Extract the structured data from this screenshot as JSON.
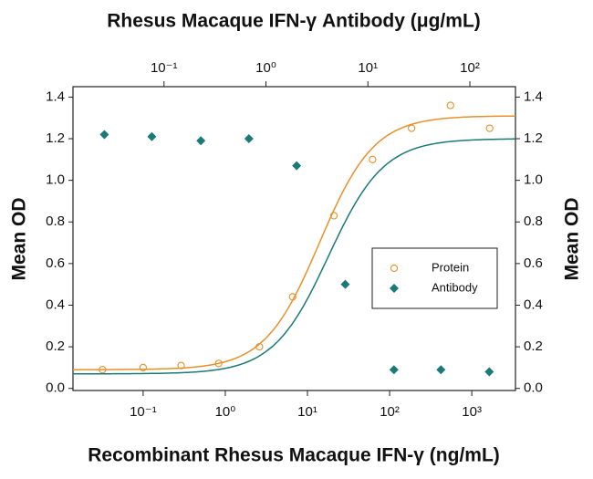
{
  "chart_data": {
    "type": "scatter",
    "title_top": "Rhesus Macaque IFN-γ Antibody (μg/mL)",
    "x_label": "Recombinant Rhesus Macaque IFN-γ (ng/mL)",
    "y_label": "Mean OD",
    "y2_label": "Mean OD",
    "x_scale": "log",
    "x2_scale": "log",
    "xlim": [
      0.014,
      3400
    ],
    "xticks": [
      {
        "value": 0.1,
        "label": "10⁻¹"
      },
      {
        "value": 1,
        "label": "10⁰"
      },
      {
        "value": 10,
        "label": "10¹"
      },
      {
        "value": 100,
        "label": "10²"
      },
      {
        "value": 1000,
        "label": "10³"
      }
    ],
    "x2lim": [
      0.0128,
      280
    ],
    "x2ticks": [
      {
        "value": 0.1,
        "label": "10⁻¹"
      },
      {
        "value": 1,
        "label": "10⁰"
      },
      {
        "value": 10,
        "label": "10¹"
      },
      {
        "value": 100,
        "label": "10²"
      }
    ],
    "ylim": [
      -0.01,
      1.45
    ],
    "yticks": [
      {
        "value": 0,
        "label": "0.0"
      },
      0.2,
      0.4,
      0.6,
      0.8,
      {
        "value": 1,
        "label": "1.0"
      },
      1.2,
      1.4
    ],
    "y2lim": [
      -0.01,
      1.45
    ],
    "y2ticks": [
      {
        "value": 0,
        "label": "0.0"
      },
      0.2,
      0.4,
      0.6,
      0.8,
      {
        "value": 1,
        "label": "1.0"
      },
      1.2,
      1.4
    ],
    "legend": "center-right",
    "series": [
      {
        "name": "Protein",
        "color": "#e8902a",
        "marker": "open-circle",
        "axis": "x",
        "x": [
          0.032,
          0.1,
          0.29,
          0.83,
          2.6,
          6.6,
          21,
          62,
          185,
          550,
          1650
        ],
        "values": [
          0.09,
          0.1,
          0.11,
          0.12,
          0.2,
          0.44,
          0.83,
          1.1,
          1.25,
          1.36,
          1.25
        ],
        "fit": {
          "bottom": 0.09,
          "top": 1.31,
          "ec50": 14,
          "hill": 1.3
        }
      },
      {
        "name": "Antibody",
        "color": "#1a7a78",
        "marker": "diamond",
        "axis": "x2",
        "x": [
          0.026,
          0.076,
          0.23,
          0.68,
          2.0,
          6.0,
          18,
          52,
          155
        ],
        "values": [
          1.22,
          1.21,
          1.19,
          1.2,
          1.07,
          0.5,
          0.09,
          0.09,
          0.08
        ],
        "fit": {
          "bottom": 0.07,
          "top": 1.2,
          "ec50": 4.1,
          "hill": 1.6
        }
      }
    ]
  }
}
